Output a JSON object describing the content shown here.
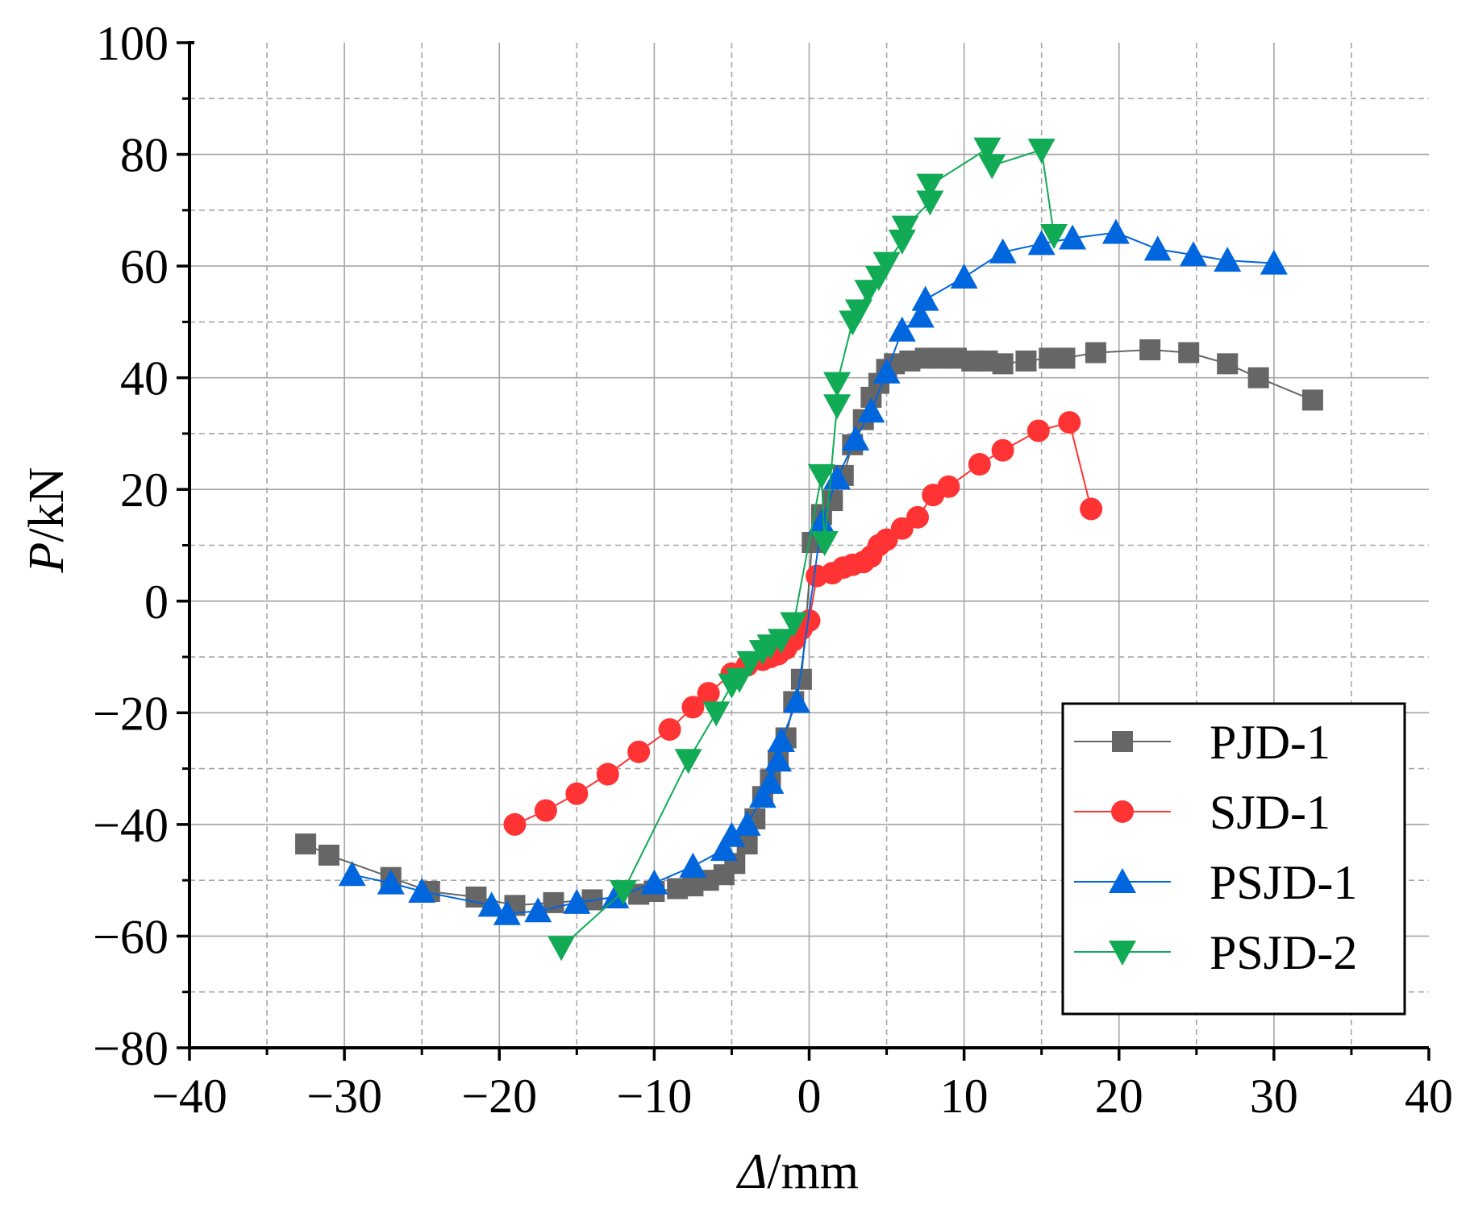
{
  "chart_data": {
    "type": "line",
    "title": "",
    "xlabel_symbol": "Δ",
    "xlabel_unit": "/mm",
    "ylabel_symbol": "P",
    "ylabel_unit": "/kN",
    "xlim": [
      -40,
      40
    ],
    "ylim": [
      -80,
      100
    ],
    "x_ticks": [
      -40,
      -30,
      -20,
      -10,
      0,
      10,
      20,
      30,
      40
    ],
    "y_ticks": [
      -80,
      -60,
      -40,
      -20,
      0,
      20,
      40,
      60,
      80,
      100
    ],
    "x_tick_labels": [
      "−40",
      "−30",
      "−20",
      "−10",
      "0",
      "10",
      "20",
      "30",
      "40"
    ],
    "y_tick_labels": [
      "−80",
      "−60",
      "−40",
      "−20",
      "0",
      "20",
      "40",
      "60",
      "80",
      "100"
    ],
    "grid": true,
    "legend_position": "bottom-right",
    "series": [
      {
        "name": "PJD-1",
        "color": "#666666",
        "marker": "square",
        "points": [
          [
            -32.5,
            -43.5
          ],
          [
            -31,
            -45.5
          ],
          [
            -27,
            -49.5
          ],
          [
            -24.5,
            -52
          ],
          [
            -21.5,
            -53
          ],
          [
            -19,
            -54.5
          ],
          [
            -16.5,
            -54
          ],
          [
            -14,
            -53.5
          ],
          [
            -11,
            -52.5
          ],
          [
            -10,
            -52
          ],
          [
            -8.5,
            -51.5
          ],
          [
            -7.5,
            -51
          ],
          [
            -6.5,
            -50
          ],
          [
            -5.5,
            -49
          ],
          [
            -4.8,
            -47
          ],
          [
            -4,
            -43.5
          ],
          [
            -3.5,
            -39
          ],
          [
            -3,
            -35
          ],
          [
            -2.5,
            -32
          ],
          [
            -2,
            -28.5
          ],
          [
            -1.5,
            -24.5
          ],
          [
            -1,
            -18
          ],
          [
            -0.5,
            -14
          ],
          [
            0.2,
            10.5
          ],
          [
            0.8,
            15.5
          ],
          [
            1.5,
            18
          ],
          [
            2.2,
            22.5
          ],
          [
            2.8,
            28
          ],
          [
            3.5,
            32.5
          ],
          [
            4,
            36.5
          ],
          [
            4.5,
            39
          ],
          [
            5,
            41.5
          ],
          [
            5.5,
            42.5
          ],
          [
            6.5,
            43
          ],
          [
            7.5,
            43.5
          ],
          [
            8.5,
            43.5
          ],
          [
            9.5,
            43.5
          ],
          [
            10.5,
            43
          ],
          [
            11.5,
            43
          ],
          [
            12.5,
            42.5
          ],
          [
            14,
            43
          ],
          [
            15.5,
            43.5
          ],
          [
            16.5,
            43.5
          ],
          [
            18.5,
            44.5
          ],
          [
            22,
            45
          ],
          [
            24.5,
            44.5
          ],
          [
            27,
            42.5
          ],
          [
            29,
            40
          ],
          [
            32.5,
            36
          ]
        ]
      },
      {
        "name": "SJD-1",
        "color": "#ff3333",
        "marker": "circle",
        "points": [
          [
            -19,
            -40
          ],
          [
            -17,
            -37.5
          ],
          [
            -15,
            -34.5
          ],
          [
            -13,
            -31
          ],
          [
            -11,
            -27
          ],
          [
            -9,
            -23
          ],
          [
            -7.5,
            -19
          ],
          [
            -6.5,
            -16.5
          ],
          [
            -5,
            -13
          ],
          [
            -4,
            -11.5
          ],
          [
            -3,
            -10.5
          ],
          [
            -2.5,
            -10
          ],
          [
            -2,
            -9.5
          ],
          [
            -1.5,
            -8.5
          ],
          [
            -1,
            -7
          ],
          [
            -0.5,
            -5
          ],
          [
            0,
            -3.5
          ],
          [
            0.5,
            4.5
          ],
          [
            1.5,
            5
          ],
          [
            2.2,
            6
          ],
          [
            2.8,
            6.5
          ],
          [
            3.5,
            7
          ],
          [
            4,
            8
          ],
          [
            4.5,
            10
          ],
          [
            5,
            11
          ],
          [
            6,
            13
          ],
          [
            7,
            15
          ],
          [
            8,
            19
          ],
          [
            9,
            20.5
          ],
          [
            11,
            24.5
          ],
          [
            12.5,
            27
          ],
          [
            14.8,
            30.5
          ],
          [
            16.8,
            32
          ],
          [
            18.2,
            16.5
          ]
        ]
      },
      {
        "name": "PSJD-1",
        "color": "#0066dd",
        "marker": "triangle-up",
        "points": [
          [
            -29.5,
            -49
          ],
          [
            -27,
            -50.5
          ],
          [
            -25,
            -52
          ],
          [
            -20.5,
            -54.5
          ],
          [
            -19.5,
            -56
          ],
          [
            -17.5,
            -55.5
          ],
          [
            -15,
            -54
          ],
          [
            -12.5,
            -53
          ],
          [
            -10,
            -50.5
          ],
          [
            -7.5,
            -47.5
          ],
          [
            -5.5,
            -44.5
          ],
          [
            -5,
            -42
          ],
          [
            -4,
            -40
          ],
          [
            -3,
            -35
          ],
          [
            -2.5,
            -32.5
          ],
          [
            -2,
            -28.5
          ],
          [
            -1.8,
            -25
          ],
          [
            -0.8,
            -18
          ],
          [
            0.8,
            14
          ],
          [
            1.8,
            22
          ],
          [
            3,
            29
          ],
          [
            4,
            34
          ],
          [
            5,
            41
          ],
          [
            6,
            48.5
          ],
          [
            7.2,
            51
          ],
          [
            7.5,
            54
          ],
          [
            10,
            58
          ],
          [
            12.5,
            62.5
          ],
          [
            15,
            64
          ],
          [
            17,
            65
          ],
          [
            19.8,
            66
          ],
          [
            22.5,
            63
          ],
          [
            24.8,
            62
          ],
          [
            27,
            61
          ],
          [
            30,
            60.5
          ]
        ]
      },
      {
        "name": "PSJD-2",
        "color": "#11aa55",
        "marker": "triangle-down",
        "points": [
          [
            -16,
            -62
          ],
          [
            -12,
            -52
          ],
          [
            -7.8,
            -28.5
          ],
          [
            -6,
            -20
          ],
          [
            -5,
            -15
          ],
          [
            -4.5,
            -14
          ],
          [
            -3.8,
            -11
          ],
          [
            -3,
            -9
          ],
          [
            -2.5,
            -8
          ],
          [
            -1.8,
            -7
          ],
          [
            -1,
            -4
          ],
          [
            0.8,
            22.5
          ],
          [
            1,
            10.5
          ],
          [
            1.8,
            35
          ],
          [
            1.8,
            39
          ],
          [
            2.8,
            50
          ],
          [
            3.2,
            52
          ],
          [
            3.8,
            55.5
          ],
          [
            4.5,
            58
          ],
          [
            5,
            60.5
          ],
          [
            6,
            64.5
          ],
          [
            6.2,
            67
          ],
          [
            7.8,
            71.5
          ],
          [
            7.8,
            74.5
          ],
          [
            11.5,
            81
          ],
          [
            11.8,
            78
          ],
          [
            15,
            80.8
          ],
          [
            15.8,
            65.5
          ]
        ]
      }
    ]
  }
}
